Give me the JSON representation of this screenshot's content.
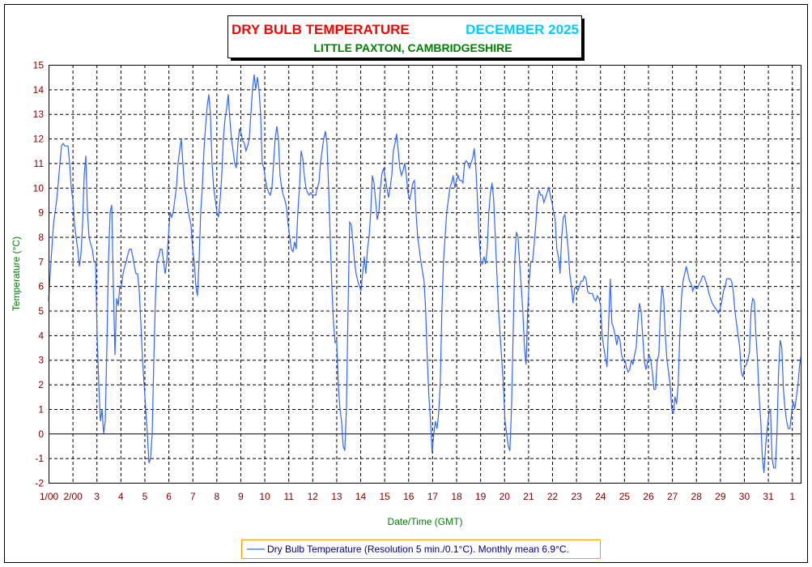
{
  "colors": {
    "series": "#3366ff",
    "title": "#ff0000",
    "month": "#00ccff",
    "subtitle": "#008000",
    "axis_label": "#008000",
    "tick": "#800000",
    "legend_border": "#ff9900"
  },
  "chart_data": {
    "type": "line",
    "title": "DRY BULB TEMPERATURE",
    "title_month": "DECEMBER 2025",
    "subtitle": "LITTLE PAXTON, CAMBRIDGESHIRE",
    "xlabel": "Date/Time (GMT)",
    "ylabel": "Temperature (°C)",
    "ylim": [
      -2,
      15
    ],
    "xlim_days": [
      1,
      32.4
    ],
    "grid": true,
    "legend_position": "bottom-center",
    "yticks": [
      "15",
      "14",
      "13",
      "12",
      "11",
      "10",
      "9",
      "8",
      "7",
      "6",
      "5",
      "4",
      "3",
      "2",
      "1",
      "0",
      "-1",
      "-2"
    ],
    "xticks": [
      "1/00",
      "2/00",
      "3",
      "4",
      "5",
      "6",
      "7",
      "8",
      "9",
      "10",
      "11",
      "12",
      "13",
      "14",
      "15",
      "16",
      "17",
      "18",
      "19",
      "20",
      "21",
      "22",
      "23",
      "24",
      "25",
      "26",
      "27",
      "28",
      "29",
      "30",
      "31",
      "1"
    ],
    "legend": "Dry Bulb Temperature (Resolution 5 min./0.1°C). Monthly mean 6.9°C.",
    "series": [
      {
        "name": "Dry Bulb Temperature",
        "x_start_day": 1,
        "x_step_days": 0.0675,
        "values": [
          5.4,
          6.5,
          7.5,
          8.5,
          9,
          9.5,
          10.2,
          11,
          11.7,
          11.8,
          11.7,
          11.7,
          11.7,
          11,
          10,
          9.5,
          8.5,
          8,
          7.5,
          6.8,
          7.3,
          8.5,
          10.5,
          11.3,
          9,
          8,
          7.7,
          7.5,
          7,
          7,
          4,
          2,
          0.5,
          1,
          0,
          0.5,
          3.5,
          7,
          9,
          9.3,
          6,
          3.2,
          5.5,
          5.2,
          6,
          6,
          6.5,
          6.8,
          7,
          7.3,
          7.5,
          7.5,
          7.2,
          6.8,
          6.5,
          6.5,
          5.8,
          4.5,
          3,
          2,
          1,
          0,
          -1.2,
          -1,
          0,
          3,
          5.5,
          7,
          7.2,
          7.5,
          7.5,
          7,
          6.5,
          7,
          8,
          9,
          8.8,
          9,
          9.5,
          10,
          11,
          11.5,
          12,
          11,
          10,
          9.7,
          9.2,
          8.8,
          8.5,
          7.5,
          7,
          6,
          5.6,
          7,
          9,
          10,
          11.5,
          12.5,
          13.3,
          13.8,
          13,
          11,
          10,
          9.5,
          9,
          8.8,
          9.5,
          10.5,
          12,
          12.8,
          13.2,
          13.8,
          12.8,
          12,
          11.5,
          11,
          10.8,
          11.8,
          12.4,
          12.2,
          11.9,
          11.8,
          11.5,
          11.7,
          12,
          13,
          14,
          14.6,
          14,
          14.5,
          14,
          13,
          11,
          10.8,
          10.3,
          10,
          9.8,
          9.7,
          10,
          11,
          12,
          12.5,
          12,
          10.5,
          10,
          9.7,
          9.5,
          9.2,
          8.5,
          8,
          7.5,
          7.4,
          7.8,
          7.5,
          9,
          10,
          11.5,
          11.2,
          10.5,
          10,
          9.8,
          9.7,
          9.8,
          9.7,
          9.7,
          9.7,
          10,
          10.2,
          11,
          11.5,
          12,
          12.3,
          11.8,
          10,
          8,
          6,
          4.5,
          3.7,
          3.8,
          2,
          1,
          0.5,
          -0.5,
          -0.7,
          1,
          5,
          8.6,
          8.5,
          7.8,
          7,
          6.5,
          6.2,
          6,
          5.8,
          6.5,
          7.2,
          6.5,
          7.5,
          8,
          9,
          10.5,
          10.2,
          9.5,
          8.7,
          9,
          10,
          10.6,
          10.8,
          10.4,
          10,
          9.6,
          10,
          10.5,
          11.5,
          11.8,
          12.2,
          11.5,
          10.8,
          10.5,
          10.7,
          11,
          10.5,
          9.8,
          9.5,
          9.8,
          10.2,
          10.3,
          9,
          8,
          7.5,
          7,
          6.6,
          6.2,
          5,
          3,
          1.5,
          0.5,
          -0.8,
          0,
          0.5,
          0.2,
          0.8,
          2,
          5,
          7,
          8,
          9,
          9.5,
          10,
          10.2,
          10.5,
          10,
          10.3,
          10.5,
          10.3,
          10.3,
          10.2,
          11,
          11.1,
          11,
          10.8,
          11,
          11.2,
          11.6,
          10.8,
          9.5,
          8,
          7,
          6.9,
          7.2,
          6.9,
          7.5,
          9,
          9.8,
          10.2,
          9.5,
          8,
          6.5,
          5,
          4,
          3,
          2,
          0.5,
          0,
          -0.5,
          -0.7,
          1,
          4,
          7,
          8.2,
          8,
          7,
          6,
          5,
          3.5,
          2.8,
          5,
          6.3,
          7,
          7,
          7.7,
          8.5,
          9.5,
          9.9,
          9.7,
          9.7,
          9.4,
          9.6,
          9.8,
          10,
          9.7,
          9.4,
          9,
          8.7,
          7.5,
          7.2,
          6.5,
          8,
          8.8,
          8.9,
          8.2,
          7.5,
          6.5,
          6,
          5.3,
          5.9,
          6,
          5.8,
          6,
          6.2,
          6.2,
          6.4,
          6.3,
          5.8,
          5.7,
          5.7,
          5.7,
          5.5,
          5.4,
          5.6,
          5.5,
          5.2,
          4,
          3.5,
          3.1,
          2.7,
          4.5,
          6.3,
          4.5,
          4.3,
          4,
          3.6,
          4,
          3.8,
          3.2,
          3,
          3,
          2.7,
          2.5,
          2.6,
          3,
          2.8,
          3.2,
          3.5,
          4.5,
          5.3,
          5,
          4,
          3,
          2.6,
          2.9,
          3.2,
          3,
          2.5,
          1.8,
          1.8,
          3,
          3.2,
          5,
          6,
          5.5,
          4,
          3,
          2.5,
          2,
          1,
          0.8,
          1.5,
          1.2,
          2,
          4,
          5.5,
          6.2,
          6.5,
          6.8,
          6.5,
          6.2,
          6.1,
          5.8,
          6,
          5.9,
          5.9,
          6.1,
          6.2,
          6.4,
          6.4,
          6.2,
          6,
          5.7,
          5.5,
          5.3,
          5.2,
          5.1,
          5,
          4.9,
          5.1,
          5.4,
          5.8,
          6,
          6.3,
          6.3,
          6.3,
          6.2,
          5.8,
          5,
          4.5,
          4,
          3.5,
          2.5,
          2.3,
          2.7,
          2.8,
          3,
          3.3,
          5,
          5.5,
          5.4,
          4,
          3,
          1.5,
          0.5,
          -1,
          -1.6,
          -0.5,
          0.2,
          0.8,
          1,
          -1,
          -1.4,
          -1.4,
          0,
          2.5,
          3.8,
          3.5,
          1.8,
          1,
          0.5,
          0.2,
          0.2,
          0.8,
          1.3,
          1,
          1.5,
          2,
          2.8,
          3.2
        ]
      }
    ]
  }
}
